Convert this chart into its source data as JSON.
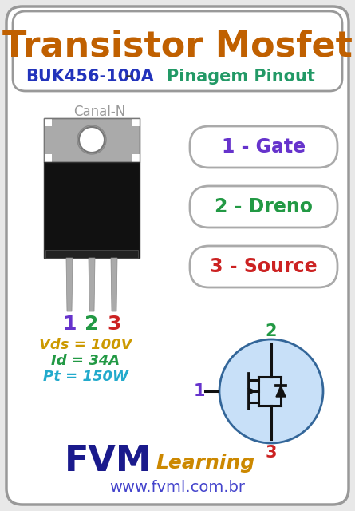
{
  "bg_color": "#e8e8e8",
  "outer_box_color": "#999999",
  "title": "Transistor Mosfet",
  "title_color": "#c06000",
  "subtitle_part1": "BUK456-100A",
  "subtitle_part1_color": "#2233bb",
  "subtitle_dash": " - ",
  "subtitle_part2": "Pinagem Pinout",
  "subtitle_part2_color": "#229966",
  "canal_label": "Canal-N",
  "canal_color": "#999999",
  "pin_labels": [
    "1 - Gate",
    "2 - Dreno",
    "3 - Source"
  ],
  "pin_colors": [
    "#6633cc",
    "#229944",
    "#cc2222"
  ],
  "pin_numbers_colors": [
    "#6633cc",
    "#229944",
    "#cc2222"
  ],
  "specs": [
    "Vds = 100V",
    "Id = 34A",
    "Pt = 150W"
  ],
  "specs_colors": [
    "#cc9900",
    "#229944",
    "#22aacc"
  ],
  "fvm_color": "#1a1a8c",
  "learning_color": "#cc8800",
  "website_color": "#4444cc",
  "transistor_body_color": "#111111",
  "transistor_metal_color": "#aaaaaa",
  "transistor_legs_color": "#aaaaaa",
  "mosfet_circle_color": "#c8e0f8",
  "mosfet_line_color": "#111111"
}
